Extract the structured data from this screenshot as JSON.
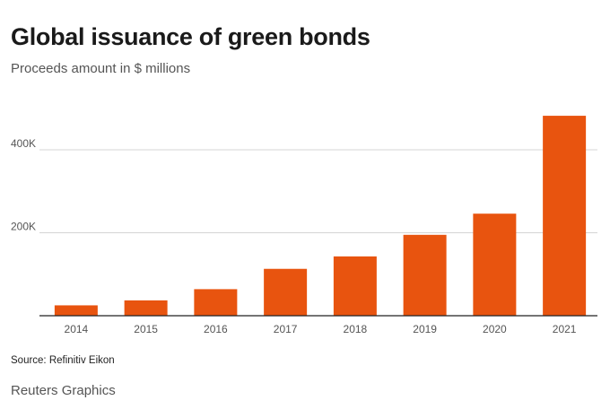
{
  "header": {
    "title": "Global issuance of green bonds",
    "subtitle": "Proceeds amount in $ millions"
  },
  "footer": {
    "source": "Source: Refinitiv Eikon",
    "credit": "Reuters Graphics"
  },
  "colors": {
    "bar": "#e8540f",
    "gridline": "#d4d4d4",
    "axis": "#222222",
    "tick_text": "#555555"
  },
  "chart_data": {
    "type": "bar",
    "title": "Global issuance of green bonds",
    "subtitle": "Proceeds amount in $ millions",
    "xlabel": "",
    "ylabel": "",
    "categories": [
      "2014",
      "2015",
      "2016",
      "2017",
      "2018",
      "2019",
      "2020",
      "2021"
    ],
    "values": [
      25000,
      37000,
      64000,
      113000,
      143000,
      195000,
      246000,
      482000
    ],
    "ylim": [
      0,
      500000
    ],
    "yticks": [
      200000,
      400000
    ],
    "ytick_labels": [
      "200K",
      "400K"
    ],
    "grid": true,
    "legend": "none"
  }
}
